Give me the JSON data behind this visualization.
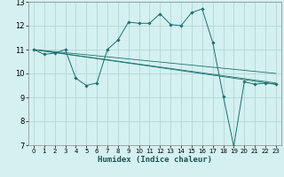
{
  "xlabel": "Humidex (Indice chaleur)",
  "bg_color": "#d5f0f0",
  "grid_color": "#b0d8d8",
  "line_color": "#1a7070",
  "xlim": [
    -0.5,
    23.5
  ],
  "ylim": [
    7,
    13
  ],
  "xticks": [
    0,
    1,
    2,
    3,
    4,
    5,
    6,
    7,
    8,
    9,
    10,
    11,
    12,
    13,
    14,
    15,
    16,
    17,
    18,
    19,
    20,
    21,
    22,
    23
  ],
  "yticks": [
    7,
    8,
    9,
    10,
    11,
    12,
    13
  ],
  "series_main": {
    "x": [
      0,
      1,
      2,
      3,
      4,
      5,
      6,
      7,
      8,
      9,
      10,
      11,
      12,
      13,
      14,
      15,
      16,
      17,
      18,
      19,
      20,
      21,
      22,
      23
    ],
    "y": [
      11.0,
      10.8,
      10.85,
      11.0,
      9.8,
      9.5,
      9.6,
      11.0,
      11.4,
      12.15,
      12.1,
      12.1,
      12.5,
      12.05,
      12.0,
      12.55,
      12.7,
      11.3,
      9.05,
      6.95,
      9.65,
      9.55,
      9.6,
      9.55
    ]
  },
  "series_lines": [
    {
      "x": [
        0,
        23
      ],
      "y": [
        11.0,
        9.55
      ]
    },
    {
      "x": [
        0,
        23
      ],
      "y": [
        11.0,
        9.55
      ]
    },
    {
      "x": [
        0,
        23
      ],
      "y": [
        11.0,
        9.55
      ]
    }
  ]
}
